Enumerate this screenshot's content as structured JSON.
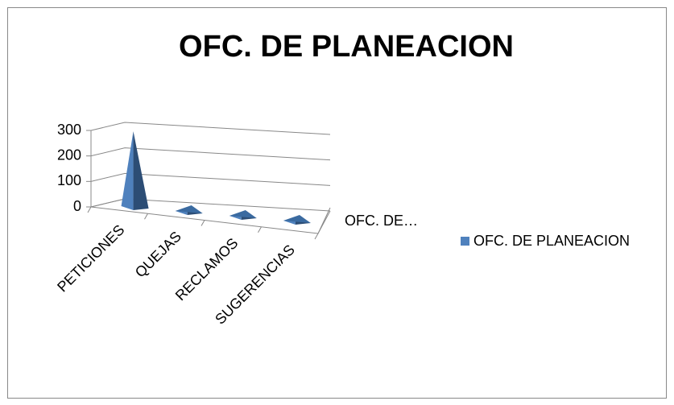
{
  "chart_data": {
    "type": "pyramid3d",
    "title": "OFC. DE PLANEACION",
    "categories": [
      "PETICIONES",
      "QUEJAS",
      "RECLAMOS",
      "SUGERENCIAS"
    ],
    "series": [
      {
        "name": "OFC. DE PLANEACION",
        "color": "#4f81bd",
        "values": [
          290,
          2,
          2,
          2
        ]
      }
    ],
    "depth_label": "OFC. DE…",
    "ylim": [
      0,
      300
    ],
    "yticks": [
      0,
      100,
      200,
      300
    ],
    "grid": true,
    "legend": "right"
  }
}
